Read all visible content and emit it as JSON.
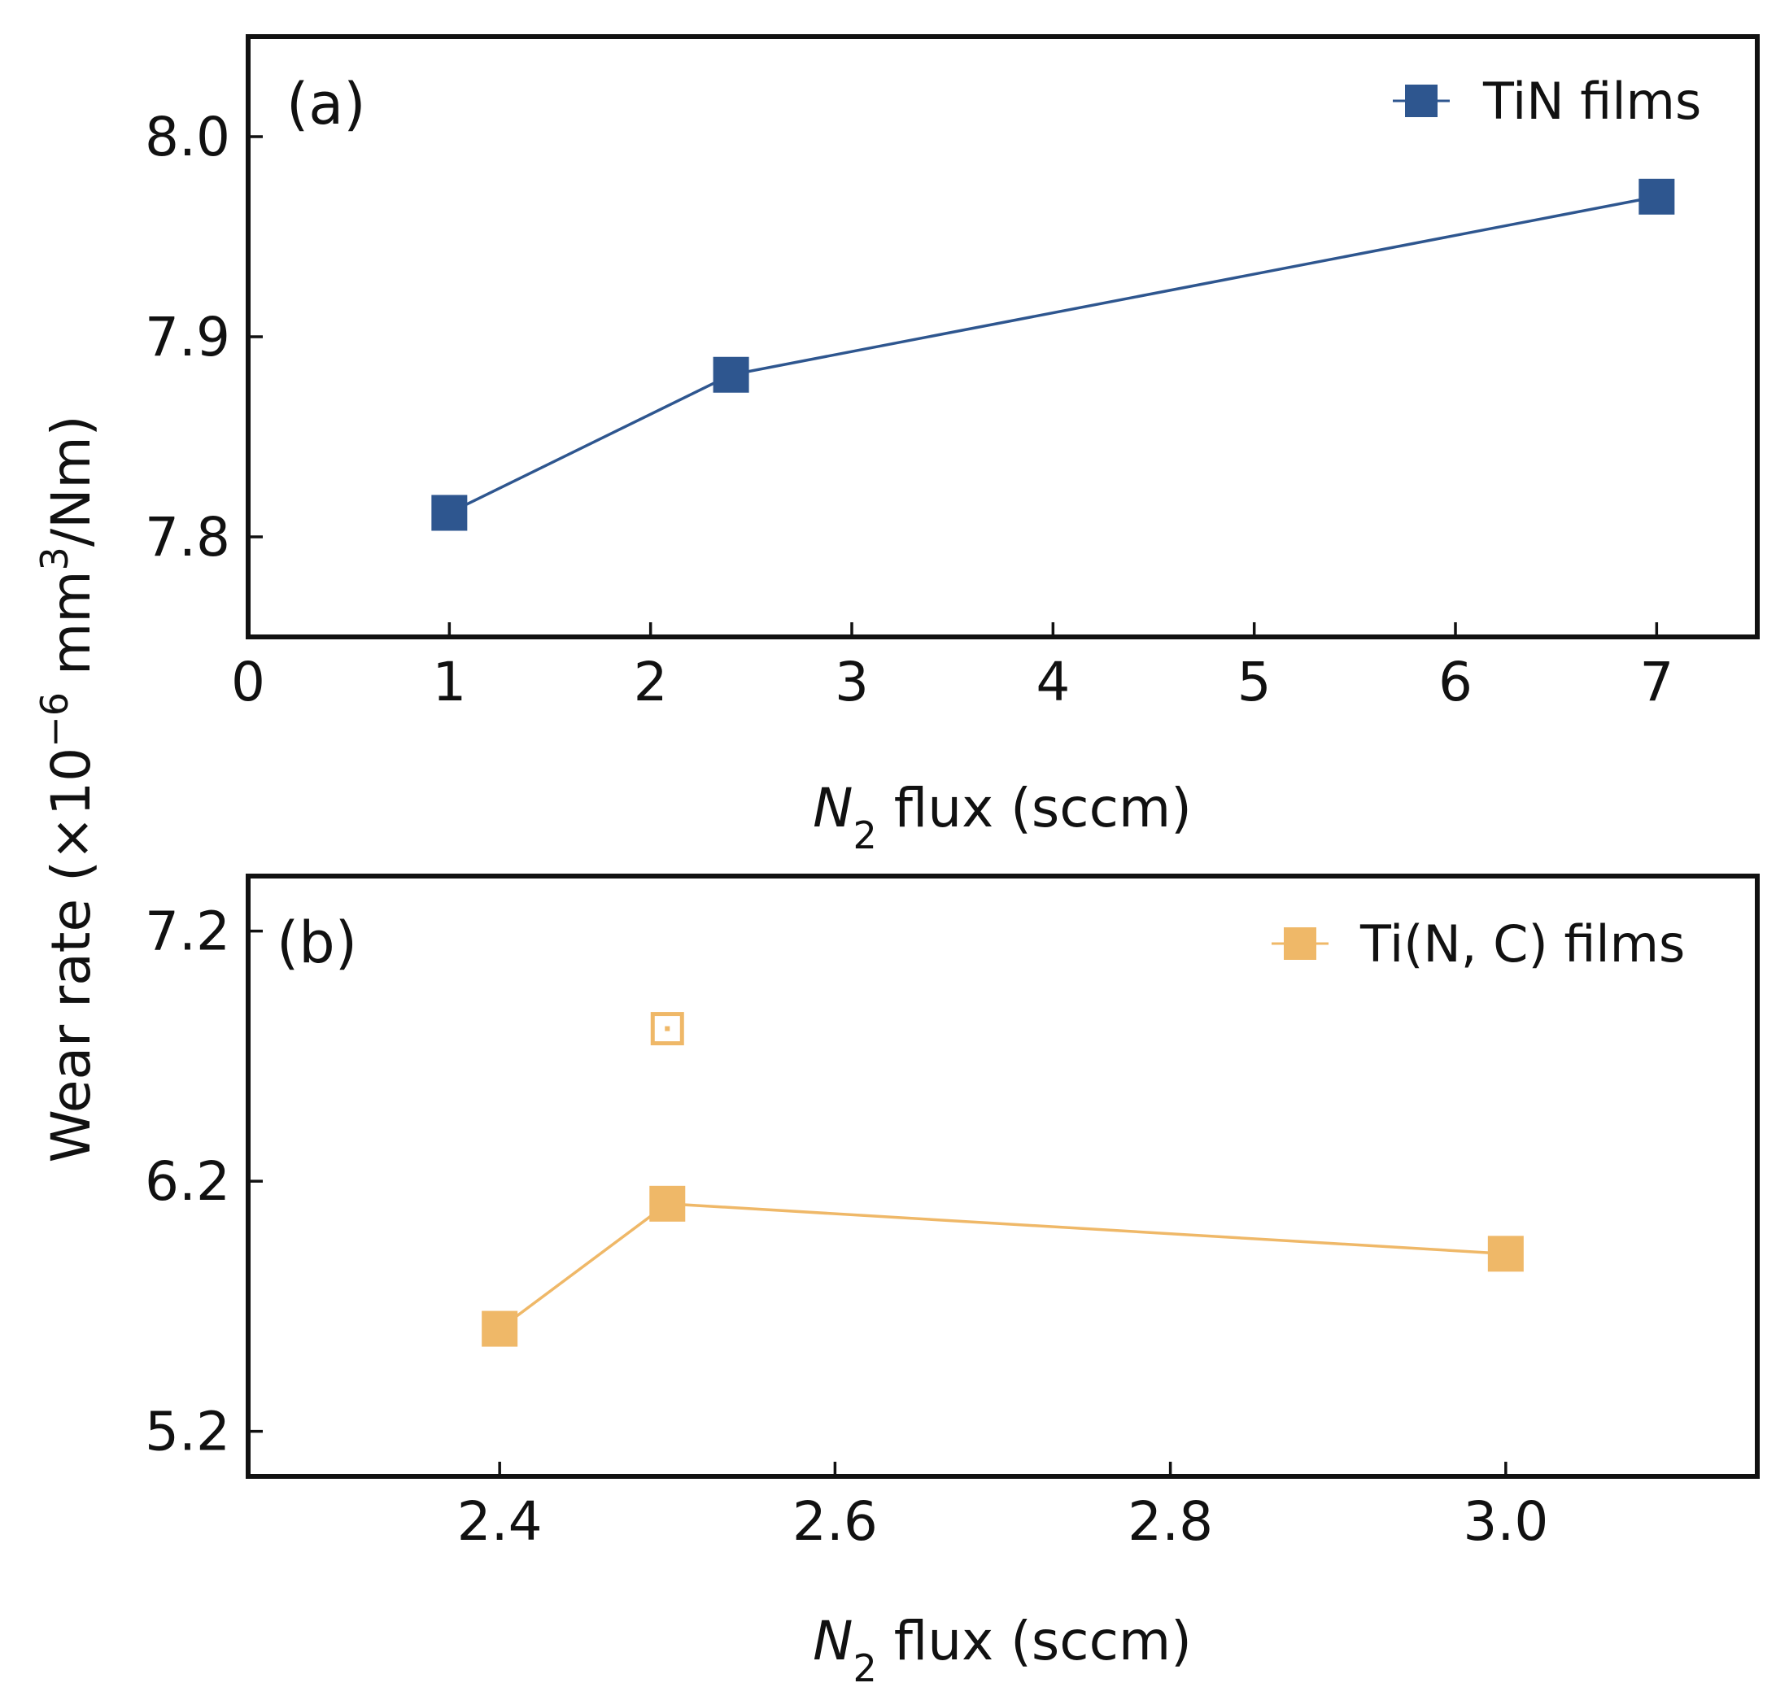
{
  "ylabel_shared": {
    "prefix": "Wear rate (×10",
    "exp": "−6",
    "unit": " mm",
    "unit_exp": "3",
    "suffix": "/Nm)"
  },
  "chart_data": [
    {
      "type": "line",
      "panel_label": "(a)",
      "xlabel_var": "N",
      "xlabel_sub": "2",
      "xlabel_rest": " flux (sccm)",
      "xlim": [
        0,
        7.5
      ],
      "ylim": [
        7.75,
        8.05
      ],
      "xticks": [
        0,
        1,
        2,
        3,
        4,
        5,
        6,
        7
      ],
      "xtick_labels": [
        "0",
        "1",
        "2",
        "3",
        "4",
        "5",
        "6",
        "7"
      ],
      "yticks": [
        7.8,
        7.9,
        8.0
      ],
      "ytick_labels": [
        "7.8",
        "7.9",
        "8.0"
      ],
      "legend_position": "top-right",
      "series": [
        {
          "name": "TiN films",
          "color": "#2e568f",
          "marker": "filled-square",
          "x": [
            1,
            2.4,
            7
          ],
          "y": [
            7.812,
            7.881,
            7.97
          ]
        }
      ],
      "extra_points": []
    },
    {
      "type": "line",
      "panel_label": "(b)",
      "xlabel_var": "N",
      "xlabel_sub": "2",
      "xlabel_rest": " flux (sccm)",
      "xlim": [
        2.25,
        3.15
      ],
      "ylim": [
        5.02,
        7.42
      ],
      "xticks": [
        2.4,
        2.6,
        2.8,
        3.0
      ],
      "xtick_labels": [
        "2.4",
        "2.6",
        "2.8",
        "3.0"
      ],
      "yticks": [
        5.2,
        6.2,
        7.2
      ],
      "ytick_labels": [
        "5.2",
        "6.2",
        "7.2"
      ],
      "legend_position": "top-right",
      "series": [
        {
          "name": "Ti(N, C) films",
          "color": "#efb868",
          "marker": "filled-square",
          "x": [
            2.4,
            2.5,
            3.0
          ],
          "y": [
            5.61,
            6.11,
            5.91
          ]
        }
      ],
      "extra_points": [
        {
          "x": 2.5,
          "y": 6.81,
          "marker": "open-square",
          "color": "#efb868"
        }
      ]
    }
  ]
}
